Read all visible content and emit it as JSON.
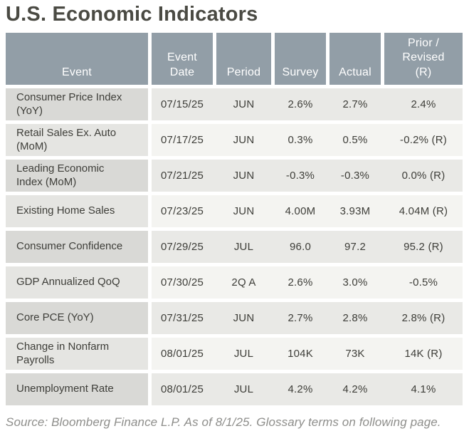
{
  "title": "U.S. Economic Indicators",
  "table": {
    "columns": [
      {
        "key": "event",
        "label": "Event"
      },
      {
        "key": "event_date",
        "label": "Event Date"
      },
      {
        "key": "period",
        "label": "Period"
      },
      {
        "key": "survey",
        "label": "Survey"
      },
      {
        "key": "actual",
        "label": "Actual"
      },
      {
        "key": "prior_revised",
        "label": "Prior / Revised (R)"
      }
    ],
    "rows": [
      {
        "event": "Consumer Price Index (YoY)",
        "event_date": "07/15/25",
        "period": "JUN",
        "survey": "2.6%",
        "actual": "2.7%",
        "prior_revised": "2.4%"
      },
      {
        "event": "Retail Sales Ex. Auto (MoM)",
        "event_date": "07/17/25",
        "period": "JUN",
        "survey": "0.3%",
        "actual": "0.5%",
        "prior_revised": "-0.2% (R)"
      },
      {
        "event": "Leading Economic Index (MoM)",
        "event_date": "07/21/25",
        "period": "JUN",
        "survey": "-0.3%",
        "actual": "-0.3%",
        "prior_revised": "0.0% (R)"
      },
      {
        "event": "Existing Home Sales",
        "event_date": "07/23/25",
        "period": "JUN",
        "survey": "4.00M",
        "actual": "3.93M",
        "prior_revised": "4.04M (R)"
      },
      {
        "event": "Consumer Confidence",
        "event_date": "07/29/25",
        "period": "JUL",
        "survey": "96.0",
        "actual": "97.2",
        "prior_revised": "95.2 (R)"
      },
      {
        "event": "GDP Annualized QoQ",
        "event_date": "07/30/25",
        "period": "2Q A",
        "survey": "2.6%",
        "actual": "3.0%",
        "prior_revised": "-0.5%"
      },
      {
        "event": "Core PCE (YoY)",
        "event_date": "07/31/25",
        "period": "JUN",
        "survey": "2.7%",
        "actual": "2.8%",
        "prior_revised": "2.8% (R)"
      },
      {
        "event": "Change in Nonfarm Payrolls",
        "event_date": "08/01/25",
        "period": "JUL",
        "survey": "104K",
        "actual": "73K",
        "prior_revised": "14K (R)"
      },
      {
        "event": "Unemployment Rate",
        "event_date": "08/01/25",
        "period": "JUL",
        "survey": "4.2%",
        "actual": "4.2%",
        "prior_revised": "4.1%"
      }
    ]
  },
  "footer": "Source: Bloomberg Finance L.P. As of  8/1/25. Glossary terms on following page.",
  "colors": {
    "header_bg": "#929ea7",
    "header_text": "#ffffff",
    "row_odd_event_bg": "#d9d9d6",
    "row_odd_bg": "#e9e9e6",
    "row_even_event_bg": "#e5e5e2",
    "row_even_bg": "#f4f4f1",
    "title_text": "#4a4a43",
    "body_text": "#3e3e39",
    "source_text": "#8e8e8b"
  },
  "chart_data": {
    "type": "table",
    "title": "U.S. Economic Indicators",
    "columns": [
      "Event",
      "Event Date",
      "Period",
      "Survey",
      "Actual",
      "Prior / Revised (R)"
    ],
    "rows": [
      [
        "Consumer Price Index (YoY)",
        "07/15/25",
        "JUN",
        "2.6%",
        "2.7%",
        "2.4%"
      ],
      [
        "Retail Sales Ex. Auto (MoM)",
        "07/17/25",
        "JUN",
        "0.3%",
        "0.5%",
        "-0.2% (R)"
      ],
      [
        "Leading Economic Index (MoM)",
        "07/21/25",
        "JUN",
        "-0.3%",
        "-0.3%",
        "0.0% (R)"
      ],
      [
        "Existing Home Sales",
        "07/23/25",
        "JUN",
        "4.00M",
        "3.93M",
        "4.04M (R)"
      ],
      [
        "Consumer Confidence",
        "07/29/25",
        "JUL",
        "96.0",
        "97.2",
        "95.2 (R)"
      ],
      [
        "GDP Annualized QoQ",
        "07/30/25",
        "2Q A",
        "2.6%",
        "3.0%",
        "-0.5%"
      ],
      [
        "Core PCE (YoY)",
        "07/31/25",
        "JUN",
        "2.7%",
        "2.8%",
        "2.8% (R)"
      ],
      [
        "Change in Nonfarm Payrolls",
        "08/01/25",
        "JUL",
        "104K",
        "73K",
        "14K (R)"
      ],
      [
        "Unemployment Rate",
        "08/01/25",
        "JUL",
        "4.2%",
        "4.2%",
        "4.1%"
      ]
    ],
    "source_note": "Source: Bloomberg Finance L.P. As of 8/1/25. Glossary terms on following page."
  }
}
